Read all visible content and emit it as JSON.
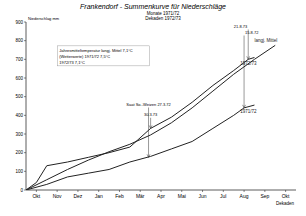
{
  "chart_data": {
    "type": "line",
    "title": "Frankendorf - Summenkurve für Niederschläge",
    "subtitle": [
      "Monate 1971/72",
      "Dekaden 1972/73"
    ],
    "y_label": "Niederschlag mm",
    "x_label": "Dekaden",
    "xlim": [
      0,
      13
    ],
    "xticks": [
      {
        "value": 0.5,
        "label": "Okt"
      },
      {
        "value": 1.5,
        "label": "Nov"
      },
      {
        "value": 2.5,
        "label": "Dez"
      },
      {
        "value": 3.5,
        "label": "Jan"
      },
      {
        "value": 4.5,
        "label": "Feb"
      },
      {
        "value": 5.5,
        "label": "Mär"
      },
      {
        "value": 6.5,
        "label": "Apr"
      },
      {
        "value": 7.5,
        "label": "Mai"
      },
      {
        "value": 8.5,
        "label": "Jun"
      },
      {
        "value": 9.5,
        "label": "Jul"
      },
      {
        "value": 10.5,
        "label": "Aug"
      },
      {
        "value": 11.5,
        "label": "Sep"
      },
      {
        "value": 12.5,
        "label": "Okt"
      }
    ],
    "ylim": [
      0,
      900
    ],
    "yticks": [
      0,
      100,
      200,
      300,
      400,
      500,
      600,
      700,
      800,
      900
    ],
    "grid": false,
    "series": [
      {
        "name": "langj. Mittel",
        "color": "#222222",
        "line_style": "solid",
        "x": [
          0,
          1,
          2,
          3,
          4,
          5,
          6,
          7,
          8,
          9,
          10,
          11,
          12
        ],
        "values": [
          0,
          55,
          110,
          160,
          205,
          245,
          295,
          360,
          440,
          530,
          620,
          700,
          775
        ]
      },
      {
        "name": "1972/73",
        "color": "#222222",
        "line_style": "solid",
        "x": [
          0,
          0.5,
          1,
          2,
          3,
          4,
          5,
          6,
          7,
          8,
          9,
          10,
          10.7,
          11
        ],
        "values": [
          0,
          40,
          130,
          150,
          175,
          200,
          230,
          330,
          390,
          470,
          560,
          640,
          700,
          710
        ]
      },
      {
        "name": "1971/72",
        "color": "#222222",
        "line_style": "solid",
        "x": [
          0,
          1,
          2,
          3,
          4,
          5,
          6,
          7,
          8,
          9,
          10,
          10.5,
          11
        ],
        "values": [
          0,
          30,
          70,
          90,
          110,
          150,
          180,
          220,
          260,
          330,
          400,
          440,
          455
        ]
      }
    ],
    "notes": [
      "Jahresmitteltemperatur langj. Mittel 7,1°C",
      "(Wetterwerte) 1971/72 7,5°C",
      "1972/73 7,1°C"
    ],
    "annotations": [
      {
        "text": "Saat So.-Weizen 27.3.72",
        "x": 5.9,
        "y": 175
      },
      {
        "text": "30.3.73",
        "x": 6,
        "y": 330
      },
      {
        "text": "21.8.73",
        "x": 10.7,
        "y": 700
      },
      {
        "text": "15.8.72",
        "x": 10.5,
        "y": 440
      }
    ]
  }
}
